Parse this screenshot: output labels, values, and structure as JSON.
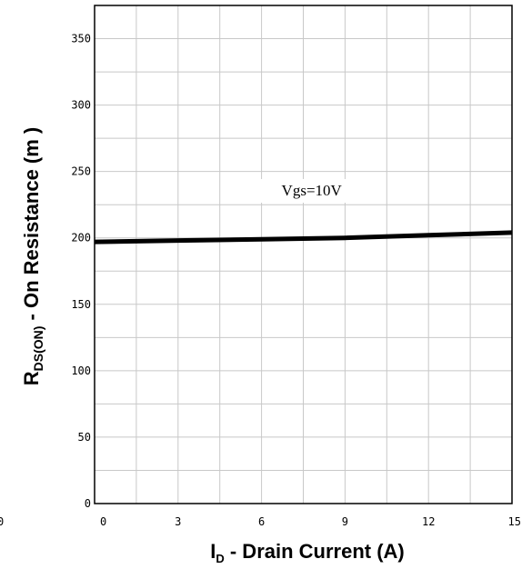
{
  "chart_data": {
    "type": "line",
    "title": "",
    "xlabel_main": "I",
    "xlabel_sub": "D",
    "xlabel_rest": " - Drain Current (A)",
    "ylabel_main": "R",
    "ylabel_sub": "DS(ON)",
    "ylabel_rest": " - On Resistance (m   )",
    "xlim": [
      0,
      15
    ],
    "ylim": [
      0,
      375
    ],
    "x_ticks": [
      0,
      3,
      6,
      9,
      12,
      15
    ],
    "y_ticks": [
      0,
      50,
      100,
      150,
      200,
      250,
      300,
      350
    ],
    "x_minor_step": 1.5,
    "y_minor_step": 25,
    "grid": true,
    "series": [
      {
        "name": "Vgs=10V",
        "color": "#000000",
        "x": [
          0,
          3,
          6,
          9,
          12,
          15
        ],
        "y": [
          197,
          198,
          199,
          200,
          202,
          204
        ]
      }
    ],
    "annotation": {
      "text": "Vgs=10V",
      "x": 7.8,
      "y": 232
    },
    "stray_label": "0"
  }
}
